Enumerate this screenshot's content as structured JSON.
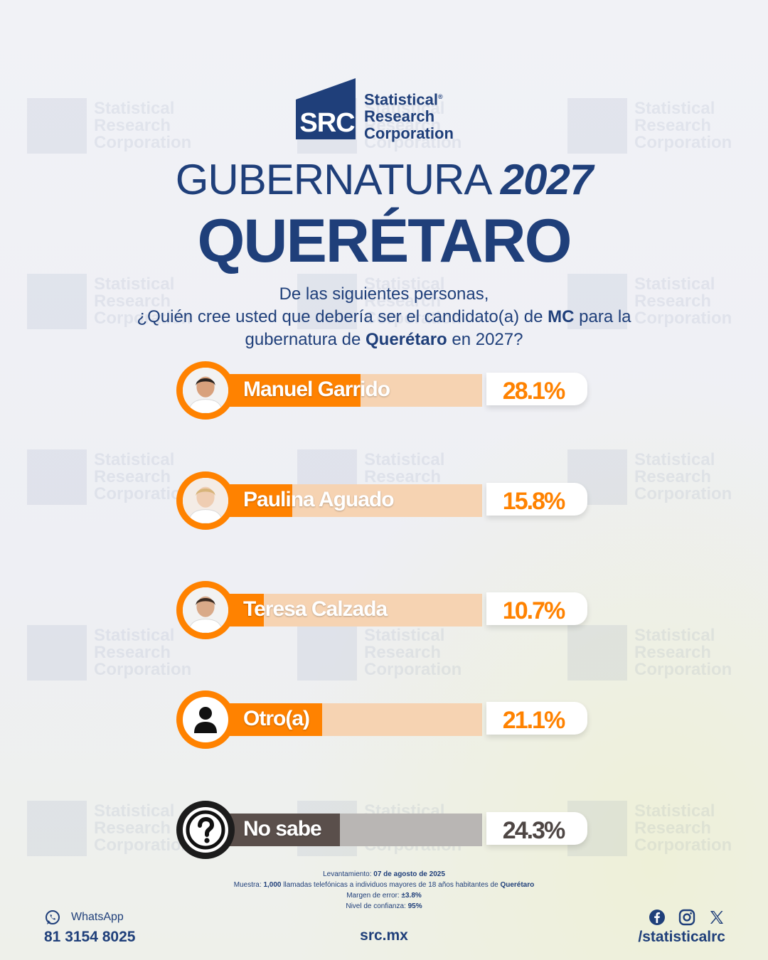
{
  "logo": {
    "mark": "SRC",
    "name_lines": [
      "Statistical",
      "Research",
      "Corporation"
    ],
    "registered": "®"
  },
  "watermark": {
    "text_lines": [
      "Statistical",
      "Research",
      "Corporation"
    ],
    "mark": "SRC"
  },
  "title": {
    "line1_thin": "GUBERNATURA",
    "line1_bold": "2027",
    "line2": "QUERÉTARO"
  },
  "question": {
    "line1": "De las siguientes personas,",
    "line2_pre": "¿Quién cree usted que debería ser el candidato(a) de ",
    "line2_bold": "MC",
    "line2_post": " para la",
    "line3_pre": "gubernatura de ",
    "line3_bold": "Querétaro",
    "line3_post": " en 2027?"
  },
  "chart_data": {
    "type": "bar",
    "title": "",
    "xlabel": "",
    "ylabel": "",
    "ylim": [
      0,
      100
    ],
    "categories": [
      "Manuel Garrido",
      "Paulina Aguado",
      "Teresa Calzada",
      "Otro(a)",
      "No sabe"
    ],
    "values": [
      28.1,
      15.8,
      10.7,
      21.1,
      24.3
    ],
    "value_labels": [
      "28.1%",
      "15.8%",
      "10.7%",
      "21.1%",
      "24.3%"
    ],
    "colors": {
      "fill": "#ff8200",
      "track": "#f6d3b2",
      "pct_text": "#ff8200",
      "nosabe_fill": "#5a4f4b",
      "nosabe_track": "#b9b6b4",
      "nosabe_text": "#4e4644"
    },
    "icons": [
      "candidate-photo",
      "candidate-photo",
      "candidate-photo",
      "person-icon",
      "question-icon"
    ]
  },
  "footnote": {
    "fecha_label": "Levantamiento: ",
    "fecha_value": "07 de agosto de 2025",
    "muestra_label": "Muestra: ",
    "muestra_value": "1,000",
    "muestra_mid": " llamadas telefónicas a individuos mayores de 18 años habitantes de ",
    "muestra_place": "Querétaro",
    "margen_label": "Margen de error: ",
    "margen_value": "±3.8%",
    "confianza_label": "Nivel de confianza: ",
    "confianza_value": "95%"
  },
  "footer": {
    "whatsapp_label": "WhatsApp",
    "whatsapp_number": "81 3154 8025",
    "site": "src.mx",
    "social_handle": "/statisticalrc"
  }
}
